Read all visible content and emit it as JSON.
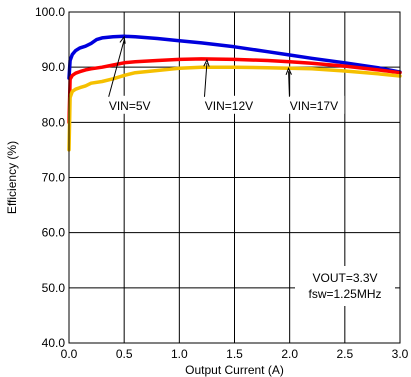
{
  "chart_data": {
    "type": "line",
    "title": "",
    "xlabel": "Output Current (A)",
    "ylabel": "Efficiency (%)",
    "xlim": [
      0,
      3
    ],
    "ylim": [
      40,
      100
    ],
    "x_ticks": [
      "0.0",
      "0.5",
      "1.0",
      "1.5",
      "2.0",
      "2.5",
      "3.0"
    ],
    "y_ticks": [
      "40.0",
      "50.0",
      "60.0",
      "70.0",
      "80.0",
      "90.0",
      "100.0"
    ],
    "grid": true,
    "series": [
      {
        "name": "VIN=5V",
        "color": "#0000dd",
        "x": [
          0,
          0.01,
          0.03,
          0.06,
          0.1,
          0.15,
          0.2,
          0.25,
          0.3,
          0.4,
          0.5,
          0.6,
          0.8,
          1.0,
          1.2,
          1.5,
          1.8,
          2.0,
          2.2,
          2.5,
          2.8,
          3.0
        ],
        "y": [
          88.0,
          91.2,
          92.3,
          93.0,
          93.5,
          93.8,
          94.3,
          95.0,
          95.3,
          95.5,
          95.6,
          95.5,
          95.2,
          94.8,
          94.4,
          93.7,
          92.8,
          92.2,
          91.6,
          90.8,
          89.9,
          89.1
        ]
      },
      {
        "name": "VIN=12V",
        "color": "#ff0000",
        "x": [
          0,
          0.01,
          0.03,
          0.06,
          0.1,
          0.15,
          0.2,
          0.3,
          0.4,
          0.5,
          0.6,
          0.8,
          1.0,
          1.2,
          1.5,
          1.8,
          2.0,
          2.2,
          2.5,
          2.8,
          3.0
        ],
        "y": [
          80.0,
          87.8,
          88.5,
          88.9,
          89.2,
          89.5,
          89.7,
          90.0,
          90.4,
          90.8,
          91.0,
          91.2,
          91.4,
          91.5,
          91.4,
          91.2,
          91.0,
          90.7,
          90.2,
          89.5,
          89.0
        ]
      },
      {
        "name": "VIN=17V",
        "color": "#f5c000",
        "x": [
          0,
          0.01,
          0.03,
          0.06,
          0.1,
          0.15,
          0.2,
          0.3,
          0.4,
          0.5,
          0.6,
          0.8,
          1.0,
          1.2,
          1.5,
          1.8,
          2.0,
          2.2,
          2.5,
          2.8,
          3.0
        ],
        "y": [
          75.0,
          84.5,
          85.6,
          86.0,
          86.3,
          86.6,
          87.1,
          87.4,
          87.9,
          88.5,
          89.0,
          89.4,
          89.8,
          90.0,
          90.0,
          89.9,
          89.8,
          89.7,
          89.3,
          88.8,
          88.4
        ]
      }
    ],
    "annotations": [
      {
        "text": "VIN=5V",
        "label_at": [
          0.55,
          83
        ],
        "arrow_to": [
          0.5,
          95.5
        ]
      },
      {
        "text": "VIN=12V",
        "label_at": [
          1.45,
          83
        ],
        "arrow_to": [
          1.25,
          91.3
        ]
      },
      {
        "text": "VIN=17V",
        "label_at": [
          2.22,
          83
        ],
        "arrow_to": [
          1.99,
          89.8
        ]
      }
    ],
    "condition_lines": [
      "VOUT=3.3V",
      "fsw=1.25MHz"
    ]
  }
}
